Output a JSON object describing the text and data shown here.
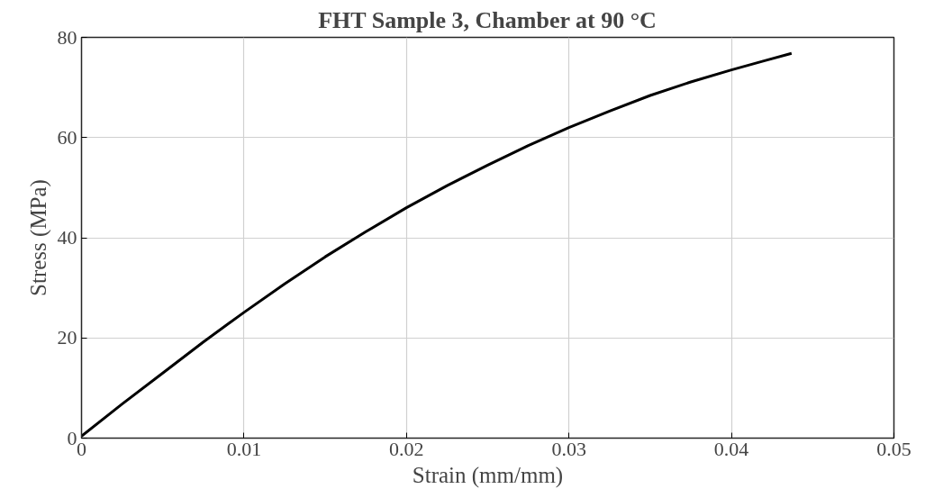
{
  "chart_data": {
    "type": "line",
    "title": "FHT Sample 3, Chamber at 90 °C",
    "xlabel": "Strain (mm/mm)",
    "ylabel": "Stress (MPa)",
    "x": [
      0,
      0.0025,
      0.005,
      0.0075,
      0.01,
      0.0125,
      0.015,
      0.0175,
      0.02,
      0.0225,
      0.025,
      0.0275,
      0.03,
      0.0325,
      0.035,
      0.0375,
      0.04,
      0.042,
      0.0437
    ],
    "series": [
      {
        "color": "#000000",
        "values": [
          0.4,
          6.8,
          13,
          19.2,
          25.1,
          30.8,
          36.2,
          41.2,
          46,
          50.4,
          54.5,
          58.4,
          62,
          65.3,
          68.4,
          71.1,
          73.5,
          75.3,
          76.8
        ]
      }
    ],
    "xlim": [
      0,
      0.05
    ],
    "ylim": [
      0,
      80
    ],
    "xticks": [
      0,
      0.01,
      0.02,
      0.03,
      0.04,
      0.05
    ],
    "yticks": [
      0,
      20,
      40,
      60,
      80
    ],
    "grid": true,
    "line_style": "solid",
    "marker": "none"
  }
}
